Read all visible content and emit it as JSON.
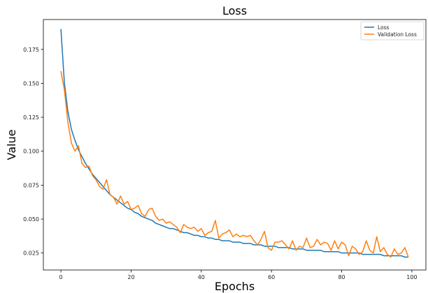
{
  "chart_data": {
    "type": "line",
    "title": "Loss",
    "xlabel": "Epochs",
    "ylabel": "Value",
    "xlim": [
      -5,
      104
    ],
    "ylim": [
      0.0125,
      0.197
    ],
    "xticks": [
      0,
      20,
      40,
      60,
      80,
      100
    ],
    "xtick_labels": [
      "0",
      "20",
      "40",
      "60",
      "80",
      "100"
    ],
    "yticks": [
      0.025,
      0.05,
      0.075,
      0.1,
      0.125,
      0.15,
      0.175
    ],
    "ytick_labels": [
      "0.025",
      "0.050",
      "0.075",
      "0.100",
      "0.125",
      "0.150",
      "0.175"
    ],
    "grid": false,
    "legend_position": "top-right",
    "series": [
      {
        "name": "Loss",
        "color": "#1f77b4",
        "x": [
          0,
          1,
          2,
          3,
          4,
          5,
          6,
          7,
          8,
          9,
          10,
          11,
          12,
          13,
          14,
          15,
          16,
          17,
          18,
          19,
          20,
          21,
          22,
          23,
          24,
          25,
          26,
          27,
          28,
          29,
          30,
          31,
          32,
          33,
          34,
          35,
          36,
          37,
          38,
          39,
          40,
          41,
          42,
          43,
          44,
          45,
          46,
          47,
          48,
          49,
          50,
          51,
          52,
          53,
          54,
          55,
          56,
          57,
          58,
          59,
          60,
          61,
          62,
          63,
          64,
          65,
          66,
          67,
          68,
          69,
          70,
          71,
          72,
          73,
          74,
          75,
          76,
          77,
          78,
          79,
          80,
          81,
          82,
          83,
          84,
          85,
          86,
          87,
          88,
          89,
          90,
          91,
          92,
          93,
          94,
          95,
          96,
          97,
          98,
          99
        ],
        "values": [
          0.19,
          0.15,
          0.129,
          0.116,
          0.108,
          0.101,
          0.096,
          0.091,
          0.087,
          0.083,
          0.08,
          0.077,
          0.074,
          0.071,
          0.068,
          0.066,
          0.064,
          0.062,
          0.06,
          0.058,
          0.057,
          0.055,
          0.054,
          0.052,
          0.051,
          0.05,
          0.049,
          0.047,
          0.046,
          0.045,
          0.044,
          0.043,
          0.043,
          0.042,
          0.041,
          0.04,
          0.04,
          0.039,
          0.038,
          0.038,
          0.037,
          0.037,
          0.036,
          0.036,
          0.035,
          0.035,
          0.034,
          0.034,
          0.034,
          0.033,
          0.033,
          0.033,
          0.032,
          0.032,
          0.032,
          0.031,
          0.031,
          0.031,
          0.03,
          0.03,
          0.03,
          0.03,
          0.029,
          0.029,
          0.029,
          0.029,
          0.028,
          0.028,
          0.028,
          0.028,
          0.027,
          0.027,
          0.027,
          0.027,
          0.027,
          0.026,
          0.026,
          0.026,
          0.026,
          0.026,
          0.025,
          0.025,
          0.025,
          0.025,
          0.025,
          0.025,
          0.024,
          0.024,
          0.024,
          0.024,
          0.024,
          0.024,
          0.023,
          0.023,
          0.023,
          0.023,
          0.023,
          0.023,
          0.022,
          0.022
        ]
      },
      {
        "name": "Validation Loss",
        "color": "#ff7f0e",
        "x": [
          0,
          1,
          2,
          3,
          4,
          5,
          6,
          7,
          8,
          9,
          10,
          11,
          12,
          13,
          14,
          15,
          16,
          17,
          18,
          19,
          20,
          21,
          22,
          23,
          24,
          25,
          26,
          27,
          28,
          29,
          30,
          31,
          32,
          33,
          34,
          35,
          36,
          37,
          38,
          39,
          40,
          41,
          42,
          43,
          44,
          45,
          46,
          47,
          48,
          49,
          50,
          51,
          52,
          53,
          54,
          55,
          56,
          57,
          58,
          59,
          60,
          61,
          62,
          63,
          64,
          65,
          66,
          67,
          68,
          69,
          70,
          71,
          72,
          73,
          74,
          75,
          76,
          77,
          78,
          79,
          80,
          81,
          82,
          83,
          84,
          85,
          86,
          87,
          88,
          89,
          90,
          91,
          92,
          93,
          94,
          95,
          96,
          97,
          98,
          99
        ],
        "values": [
          0.159,
          0.145,
          0.121,
          0.106,
          0.1,
          0.104,
          0.091,
          0.088,
          0.089,
          0.082,
          0.079,
          0.074,
          0.072,
          0.079,
          0.068,
          0.066,
          0.061,
          0.067,
          0.061,
          0.063,
          0.057,
          0.058,
          0.06,
          0.054,
          0.052,
          0.057,
          0.058,
          0.052,
          0.049,
          0.05,
          0.047,
          0.048,
          0.046,
          0.044,
          0.04,
          0.046,
          0.044,
          0.043,
          0.044,
          0.041,
          0.043,
          0.038,
          0.04,
          0.041,
          0.049,
          0.036,
          0.039,
          0.04,
          0.042,
          0.037,
          0.039,
          0.037,
          0.038,
          0.037,
          0.038,
          0.034,
          0.031,
          0.035,
          0.041,
          0.029,
          0.027,
          0.033,
          0.033,
          0.034,
          0.031,
          0.028,
          0.034,
          0.027,
          0.03,
          0.029,
          0.036,
          0.029,
          0.03,
          0.035,
          0.031,
          0.033,
          0.032,
          0.027,
          0.034,
          0.028,
          0.033,
          0.031,
          0.023,
          0.03,
          0.028,
          0.024,
          0.026,
          0.034,
          0.027,
          0.025,
          0.037,
          0.026,
          0.029,
          0.024,
          0.022,
          0.028,
          0.024,
          0.025,
          0.029,
          0.022
        ]
      }
    ]
  }
}
